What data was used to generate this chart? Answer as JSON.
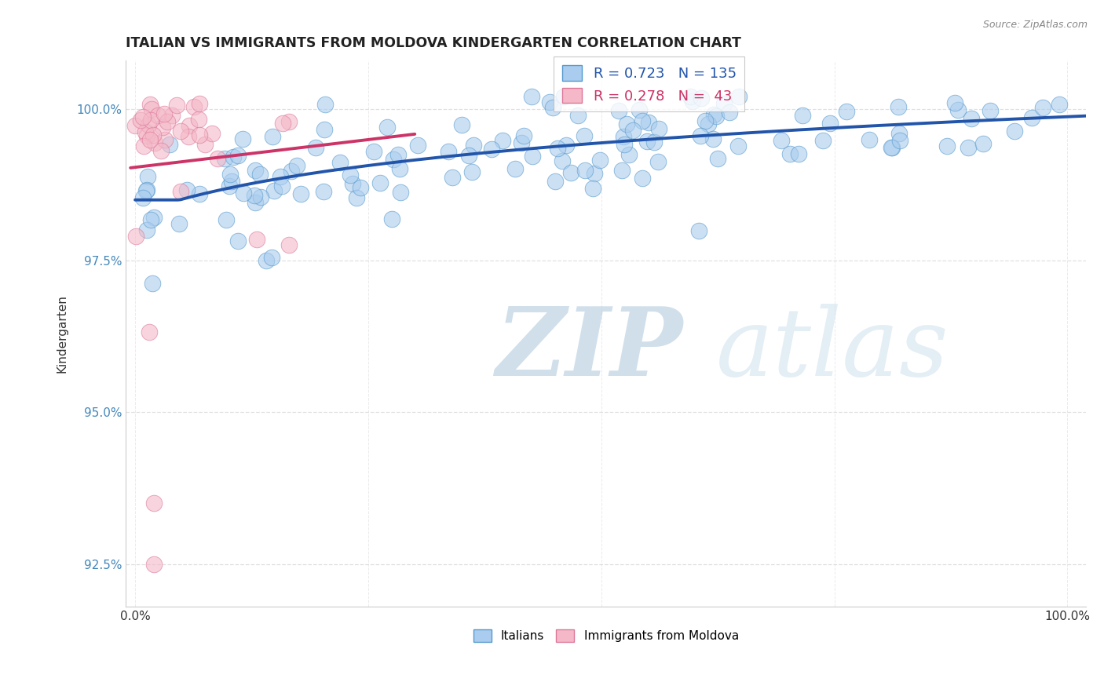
{
  "title": "ITALIAN VS IMMIGRANTS FROM MOLDOVA KINDERGARTEN CORRELATION CHART",
  "source_text": "Source: ZipAtlas.com",
  "ylabel": "Kindergarten",
  "y_tick_values": [
    0.925,
    0.95,
    0.975,
    1.0
  ],
  "legend_blue_r": "R = 0.723",
  "legend_blue_n": "N = 135",
  "legend_pink_r": "R = 0.278",
  "legend_pink_n": "N =  43",
  "blue_color": "#aaccee",
  "blue_edge_color": "#5599cc",
  "blue_line_color": "#2255aa",
  "pink_color": "#f4b8c8",
  "pink_edge_color": "#dd7799",
  "pink_line_color": "#cc3366",
  "watermark_zip_color": "#c8d8e8",
  "watermark_atlas_color": "#d8e8f0",
  "background_color": "#ffffff",
  "grid_color": "#dddddd",
  "title_color": "#222222",
  "tick_color_y": "#4488bb",
  "tick_color_x": "#333333",
  "source_color": "#888888"
}
